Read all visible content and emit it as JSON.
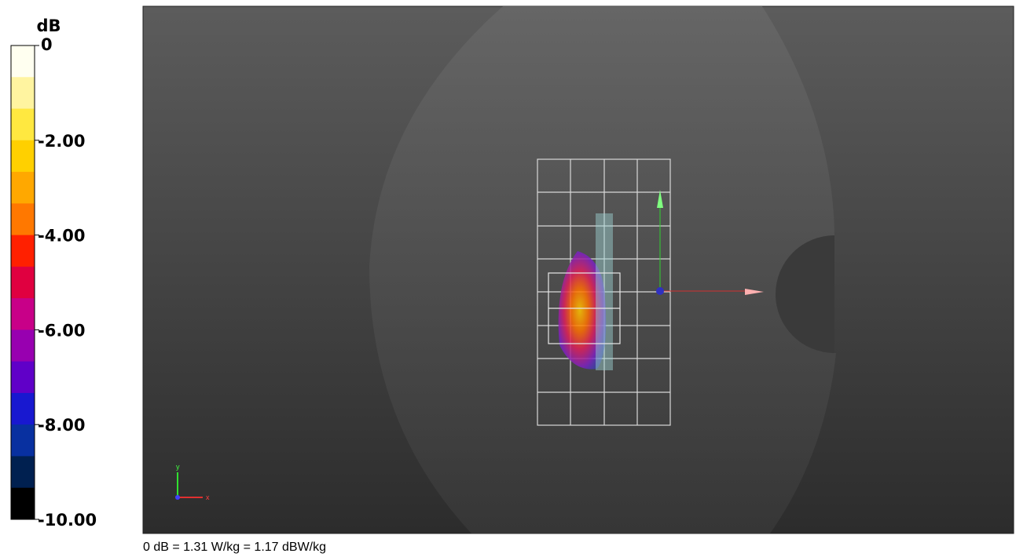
{
  "colorbar": {
    "title": "dB",
    "ticks": [
      "0",
      "-2.00",
      "-4.00",
      "-6.00",
      "-8.00",
      "-10.00"
    ]
  },
  "axes_triad": {
    "y": "y",
    "x": "x"
  },
  "footer": "0 dB = 1.31 W/kg = 1.17 dBW/kg"
}
